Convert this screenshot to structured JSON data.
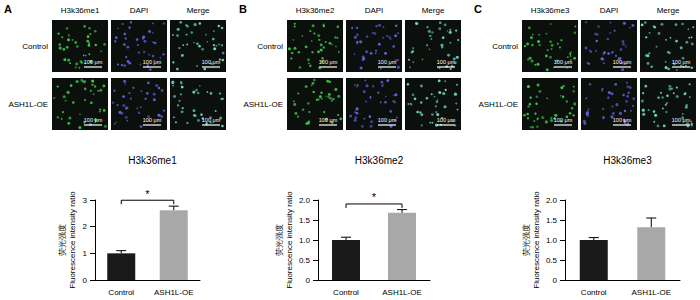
{
  "chart_data": [
    {
      "type": "bar",
      "title": "H3k36me1",
      "y_label": [
        "荧光强度",
        "Fluorescence intensity ratio"
      ],
      "categories": [
        "Control",
        "ASH1L-OE"
      ],
      "values": [
        1.0,
        2.62
      ],
      "errors": [
        0.1,
        0.15
      ],
      "colors": [
        "#1a1a1a",
        "#a8a8a8"
      ],
      "ylim": [
        0,
        3
      ],
      "yticks": [
        0,
        1,
        2,
        3
      ],
      "annotations": [
        {
          "text": "*",
          "categories": [
            "Control",
            "ASH1L-OE"
          ]
        }
      ]
    },
    {
      "type": "bar",
      "title": "H3k36me2",
      "y_label": [
        "荧光强度",
        "Fluorescence intensity ratio"
      ],
      "categories": [
        "Control",
        "ASH1L-OE"
      ],
      "values": [
        1.0,
        1.68
      ],
      "errors": [
        0.07,
        0.08
      ],
      "colors": [
        "#1a1a1a",
        "#a8a8a8"
      ],
      "ylim": [
        0,
        2
      ],
      "yticks": [
        0,
        0.5,
        {
          "value": 1,
          "label": "1.0"
        },
        1.5,
        {
          "value": 2,
          "label": "2.0"
        }
      ],
      "annotations": [
        {
          "text": "*",
          "categories": [
            "Control",
            "ASH1L-OE"
          ]
        }
      ]
    },
    {
      "type": "bar",
      "title": "H3k36me3",
      "y_label": [
        "荧光强度",
        "Fluorescence intensity ratio"
      ],
      "categories": [
        "Control",
        "ASH1L-OE"
      ],
      "values": [
        1.0,
        1.32
      ],
      "errors": [
        0.06,
        0.23
      ],
      "colors": [
        "#1a1a1a",
        "#a8a8a8"
      ],
      "ylim": [
        0,
        2
      ],
      "yticks": [
        0,
        0.5,
        {
          "value": 1,
          "label": "1.0"
        },
        1.5,
        {
          "value": 2,
          "label": "2.0"
        }
      ]
    }
  ],
  "image_panels": [
    {
      "label": "A",
      "columns": [
        "H3k36me1",
        "DAPI",
        "Merge"
      ],
      "rows": [
        "Control",
        "ASH1L-OE"
      ],
      "scale_bar": "100 μm"
    },
    {
      "label": "B",
      "columns": [
        "H3k36me2",
        "DAPI",
        "Merge"
      ],
      "rows": [
        "Control",
        "ASH1L-OE"
      ],
      "scale_bar": "100 μm"
    },
    {
      "label": "C",
      "columns": [
        "H3k36me3",
        "DAPI",
        "Merge"
      ],
      "rows": [
        "Control",
        "ASH1L-OE"
      ],
      "scale_bar": "100 μm"
    }
  ]
}
